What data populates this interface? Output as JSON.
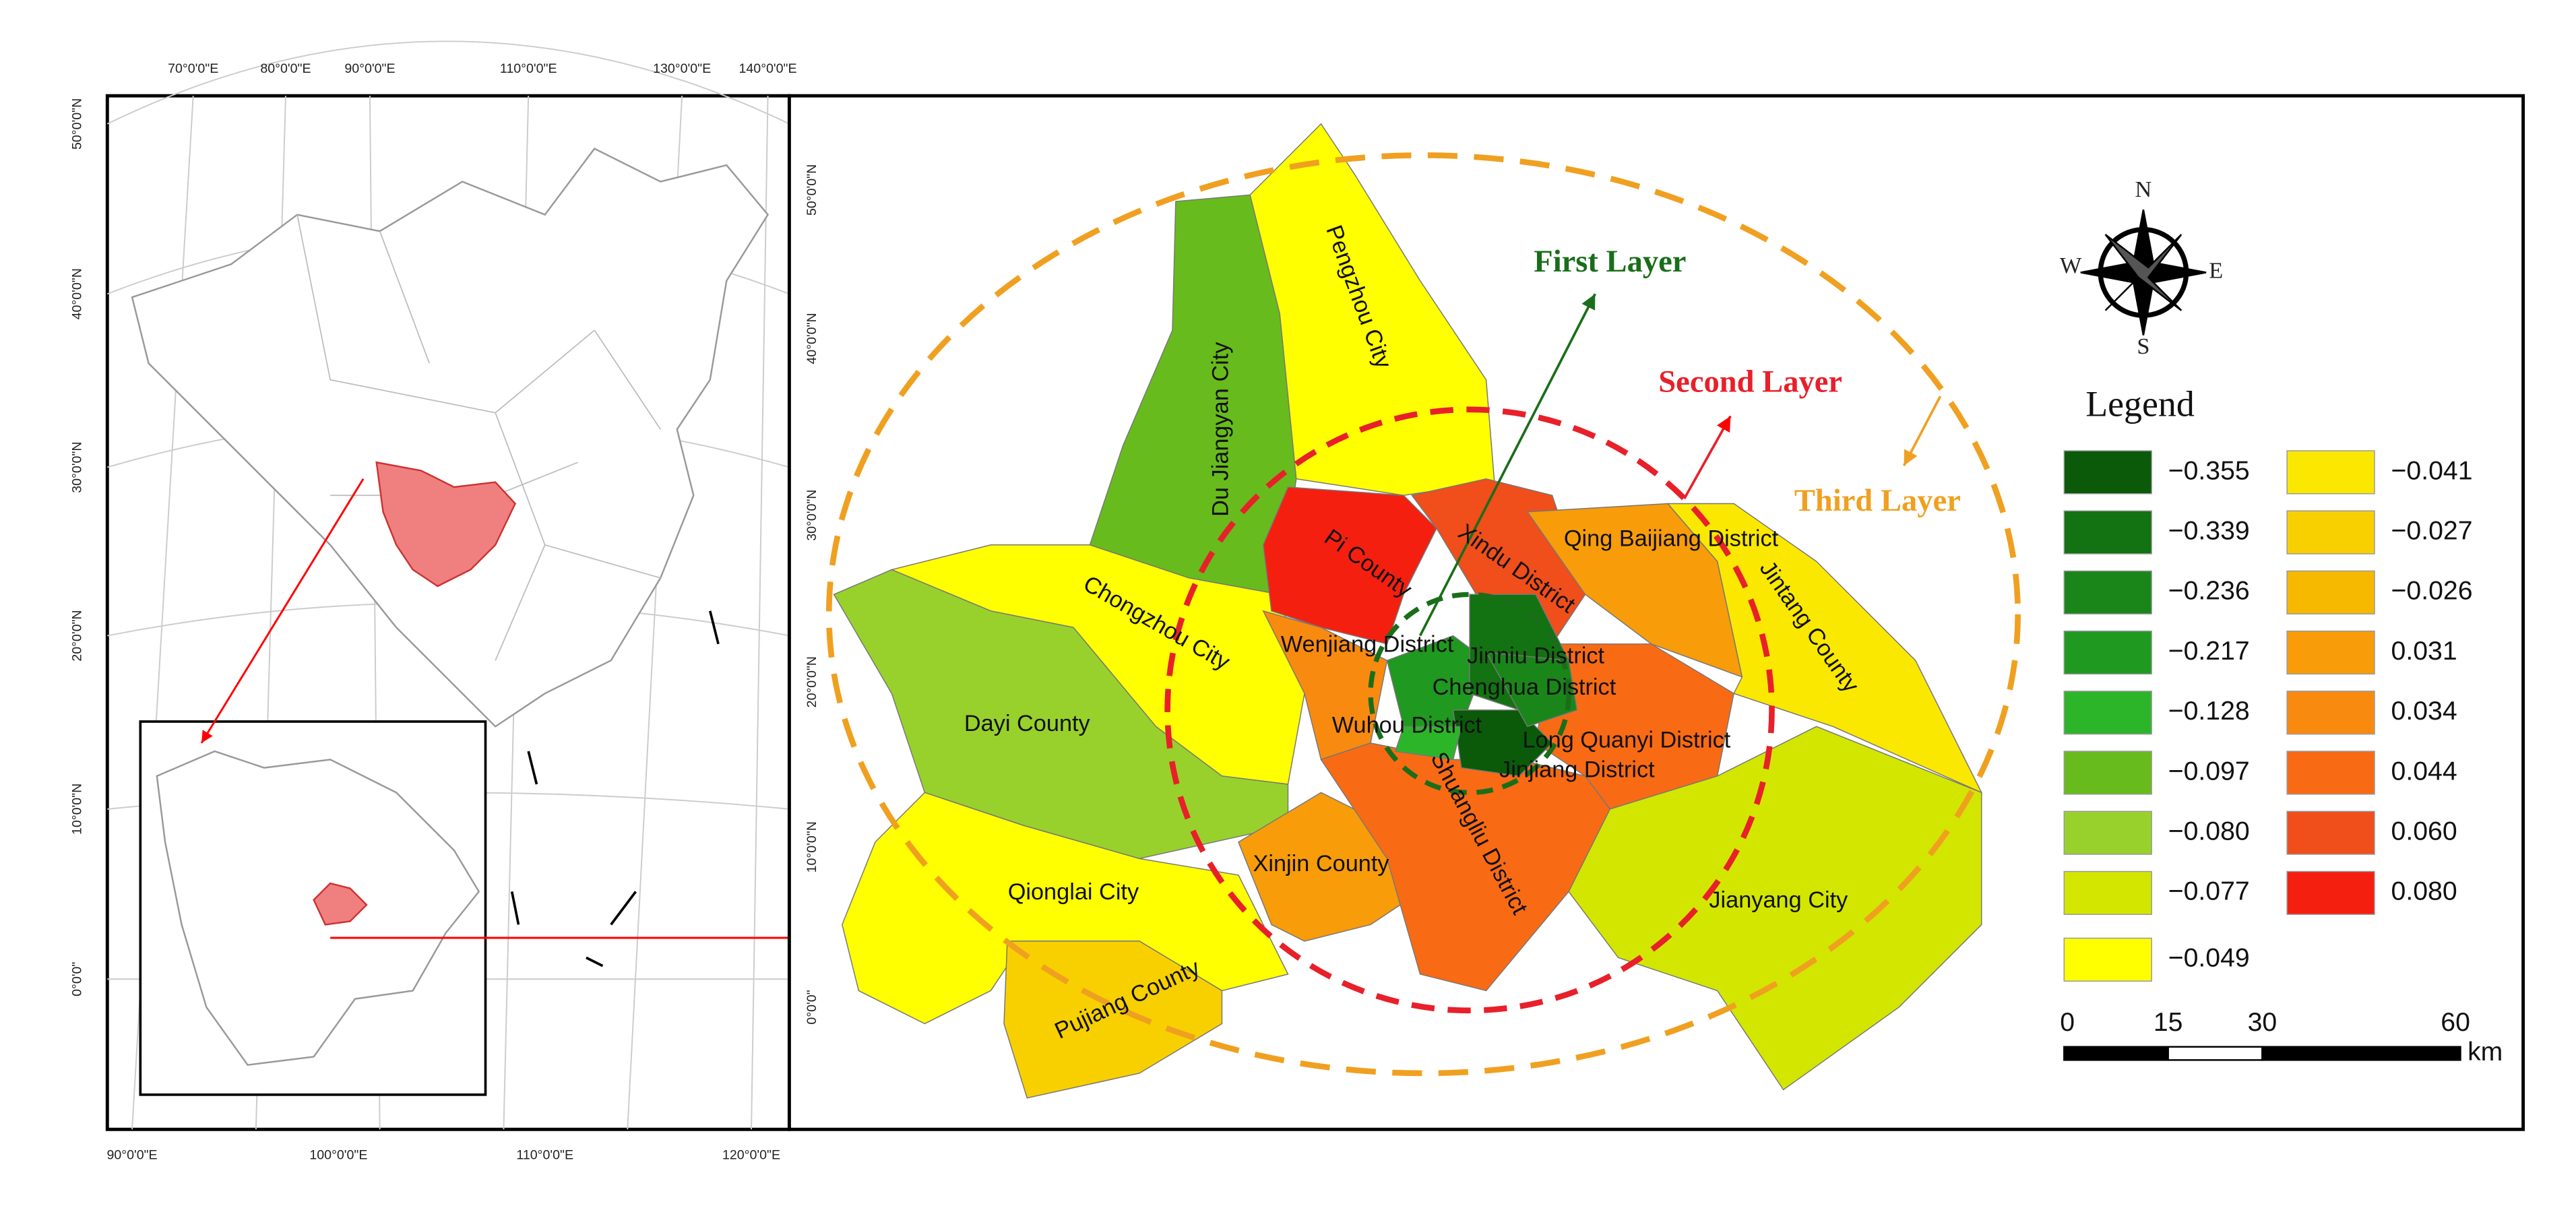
{
  "left_map": {
    "top_labels": [
      "70°0'0\"E",
      "80°0'0\"E",
      "90°0'0\"E",
      "110°0'0\"E",
      "130°0'0\"E",
      "140°0'0\"E"
    ],
    "left_labels": [
      "50°0'0\"N",
      "40°0'0\"N",
      "30°0'0\"N",
      "20°0'0\"N",
      "10°0'0\"N",
      "0°0'0\""
    ],
    "bottom_labels": [
      "90°0'0\"E",
      "100°0'0\"E",
      "110°0'0\"E",
      "120°0'0\"E"
    ]
  },
  "right_map": {
    "lat_labels": [
      "50°0'0\"N",
      "40°0'0\"N",
      "30°0'0\"N",
      "20°0'0\"N",
      "10°0'0\"N",
      "0°0'0\""
    ],
    "districts": [
      "Du Jiangyan City",
      "Pengzhou City",
      "Pi County",
      "Xindu District",
      "Qing Baijiang District",
      "Jintang County",
      "Chongzhou City",
      "Wenjiang District",
      "Jinniu District",
      "Chenghua District",
      "Wuhou District",
      "Long Quanyi District",
      "Jinjiang District",
      "Shuangliu District",
      "Dayi County",
      "Xinjin County",
      "Qionglai City",
      "Pujiang County",
      "Jianyang City"
    ],
    "layers": [
      {
        "label": "First Layer",
        "color": "#1a6e1a"
      },
      {
        "label": "Second Layer",
        "color": "#e8202a"
      },
      {
        "label": "Third Layer",
        "color": "#f0a020"
      }
    ],
    "legend": {
      "title": "Legend",
      "items": [
        {
          "label": "−0.355",
          "color": "#0a5a0a"
        },
        {
          "label": "−0.339",
          "color": "#137212"
        },
        {
          "label": "−0.236",
          "color": "#1a861a"
        },
        {
          "label": "−0.217",
          "color": "#1f991f"
        },
        {
          "label": "−0.128",
          "color": "#2db52a"
        },
        {
          "label": "−0.097",
          "color": "#68bb1c"
        },
        {
          "label": "−0.080",
          "color": "#98d12c"
        },
        {
          "label": "−0.077",
          "color": "#d3e600"
        },
        {
          "label": "−0.049",
          "color": "#ffff00"
        },
        {
          "label": "−0.041",
          "color": "#fbe800"
        },
        {
          "label": "−0.027",
          "color": "#f8d000"
        },
        {
          "label": "−0.026",
          "color": "#f7b800"
        },
        {
          "label": "0.031",
          "color": "#f89c0a"
        },
        {
          "label": "0.034",
          "color": "#f98a10"
        },
        {
          "label": "0.044",
          "color": "#f96a14"
        },
        {
          "label": "0.060",
          "color": "#f04e1a"
        },
        {
          "label": "0.080",
          "color": "#f51f10"
        }
      ]
    },
    "scale": {
      "labels": [
        "0",
        "15",
        "30",
        "60"
      ],
      "unit": "km"
    },
    "compass": [
      "N",
      "E",
      "S",
      "W"
    ]
  }
}
